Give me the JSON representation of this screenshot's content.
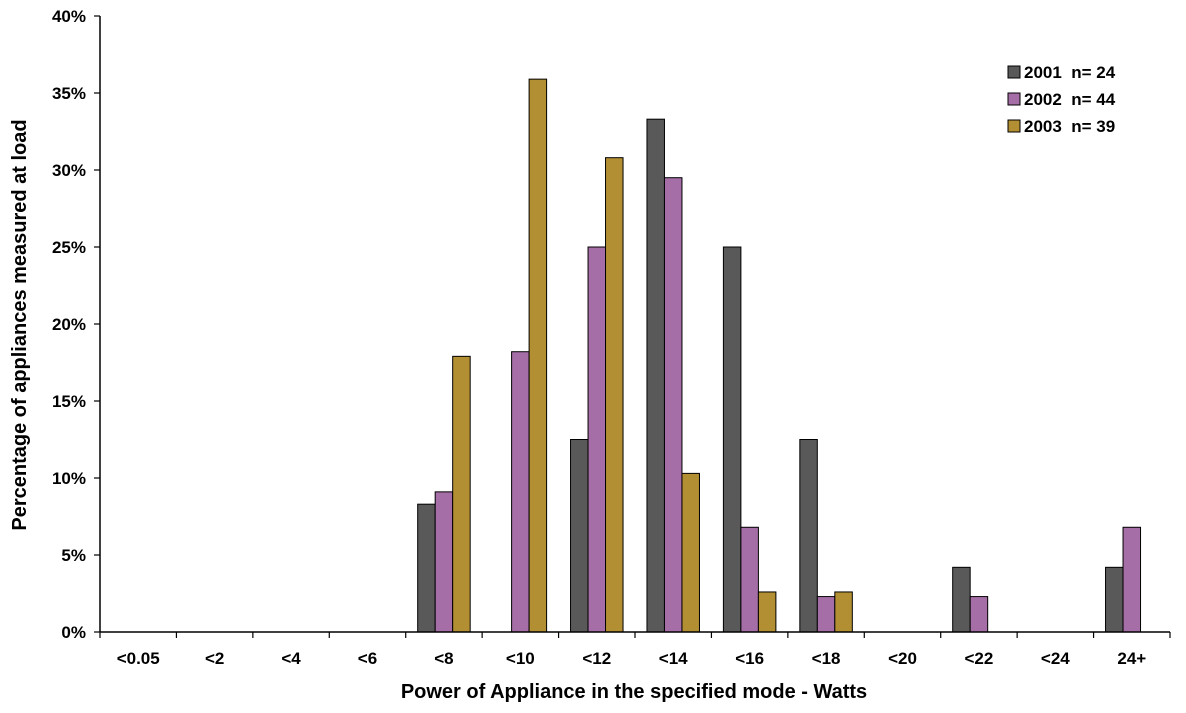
{
  "chart_data": {
    "type": "bar",
    "xlabel": "Power of Appliance in the specified mode - Watts",
    "ylabel": "Percentage of appliances measured at load",
    "categories": [
      "<0.05",
      "<2",
      "<4",
      "<6",
      "<8",
      "<10",
      "<12",
      "<14",
      "<16",
      "<18",
      "<20",
      "<22",
      "<24",
      "24+"
    ],
    "ylim": [
      0,
      40
    ],
    "yticks": [
      0,
      5,
      10,
      15,
      20,
      25,
      30,
      35,
      40
    ],
    "ytick_labels": [
      "0%",
      "5%",
      "10%",
      "15%",
      "20%",
      "25%",
      "30%",
      "35%",
      "40%"
    ],
    "grid": false,
    "legend_position": "top-right",
    "series": [
      {
        "name": "2001  n= 24",
        "color": "#595959",
        "values": [
          0,
          0,
          0,
          0,
          8.3,
          0,
          12.5,
          33.3,
          25.0,
          12.5,
          0,
          4.2,
          0,
          4.2
        ]
      },
      {
        "name": "2002  n= 44",
        "color": "#a66ea6",
        "values": [
          0,
          0,
          0,
          0,
          9.1,
          18.2,
          25.0,
          29.5,
          6.8,
          2.3,
          0,
          2.3,
          0,
          6.8
        ]
      },
      {
        "name": "2003  n= 39",
        "color": "#b38f33",
        "values": [
          0,
          0,
          0,
          0,
          17.9,
          35.9,
          30.8,
          10.3,
          2.6,
          2.6,
          0,
          0,
          0,
          0
        ]
      }
    ]
  }
}
